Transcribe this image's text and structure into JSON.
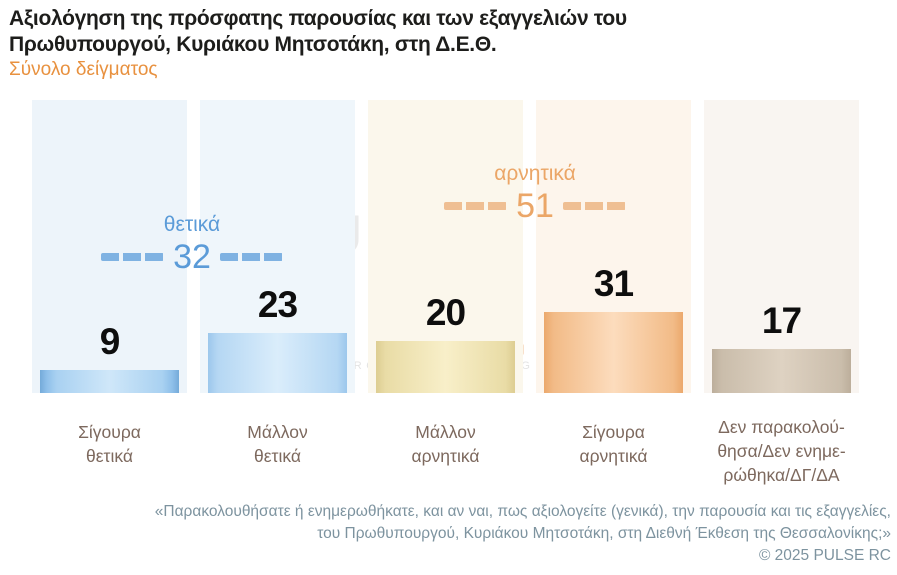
{
  "header": {
    "title_line1": "Αξιολόγηση της πρόσφατης παρουσίας και των εξαγγελιών του",
    "title_line2": "Πρωθυπουργού, Κυριάκου Μητσοτάκη, στη Δ.Ε.Θ.",
    "subtitle": "Σύνολο δείγματος"
  },
  "chart_data": {
    "type": "bar",
    "title": "Αξιολόγηση της πρόσφατης παρουσίας και των εξαγγελιών του Πρωθυπουργού, Κυριάκου Μητσοτάκη, στη Δ.Ε.Θ.",
    "subtitle": "Σύνολο δείγματος",
    "categories": [
      "Σίγουρα θετικά",
      "Μάλλον θετικά",
      "Μάλλον αρνητικά",
      "Σίγουρα αρνητικά",
      "Δεν παρακολούθησα/Δεν ενημερώθηκα/ΔΓ/ΔΑ"
    ],
    "values": [
      9,
      23,
      20,
      31,
      17
    ],
    "unit": "percent",
    "ylim": [
      0,
      100
    ],
    "grid": false,
    "legend": false,
    "groups": [
      {
        "label": "θετικά",
        "value": 32,
        "color": "#5b9bd8",
        "spans_categories": [
          0,
          1
        ]
      },
      {
        "label": "αρνητικά",
        "value": 51,
        "color": "#eba667",
        "spans_categories": [
          2,
          3
        ]
      }
    ],
    "bar_colors": [
      "#8fc0ea",
      "#b5d7f3",
      "#e9dca6",
      "#f2bb87",
      "#cabdab"
    ]
  },
  "bars": [
    {
      "label_line1": "Σίγουρα",
      "label_line2": "θετικά"
    },
    {
      "label_line1": "Μάλλον",
      "label_line2": "θετικά"
    },
    {
      "label_line1": "Μάλλον",
      "label_line2": "αρνητικά"
    },
    {
      "label_line1": "Σίγουρα",
      "label_line2": "αρνητικά"
    },
    {
      "label_line1": "Δεν παρακολού-",
      "label_line2": "θησα/Δεν ενημε-",
      "label_line3": "ρώθηκα/ΔΓ/ΔΑ"
    }
  ],
  "watermark": {
    "brand": "PULSE",
    "tagline": "RESEARCH & CONSULTING"
  },
  "footer": {
    "quote_line1": "«Παρακολουθήσατε ή ενημερωθήκατε, και αν ναι, πως αξιολογείτε (γενικά), την παρουσία και τις εξαγγελίες,",
    "quote_line2": "του Πρωθυπουργού, Κυριάκου Μητσοτάκη, στη Διεθνή Έκθεση της Θεσσαλονίκης;»",
    "copyright": "©  2025  PULSE RC"
  },
  "palette": {
    "accent_orange": "#e8913f",
    "accent_blue": "#5b9bd8",
    "category_label": "#7d695e",
    "footer_text": "#7d939f",
    "panel_tints": [
      "#edf4fa",
      "#eff6fb",
      "#fbf7ec",
      "#fdf5ec",
      "#f9f5f1"
    ]
  }
}
